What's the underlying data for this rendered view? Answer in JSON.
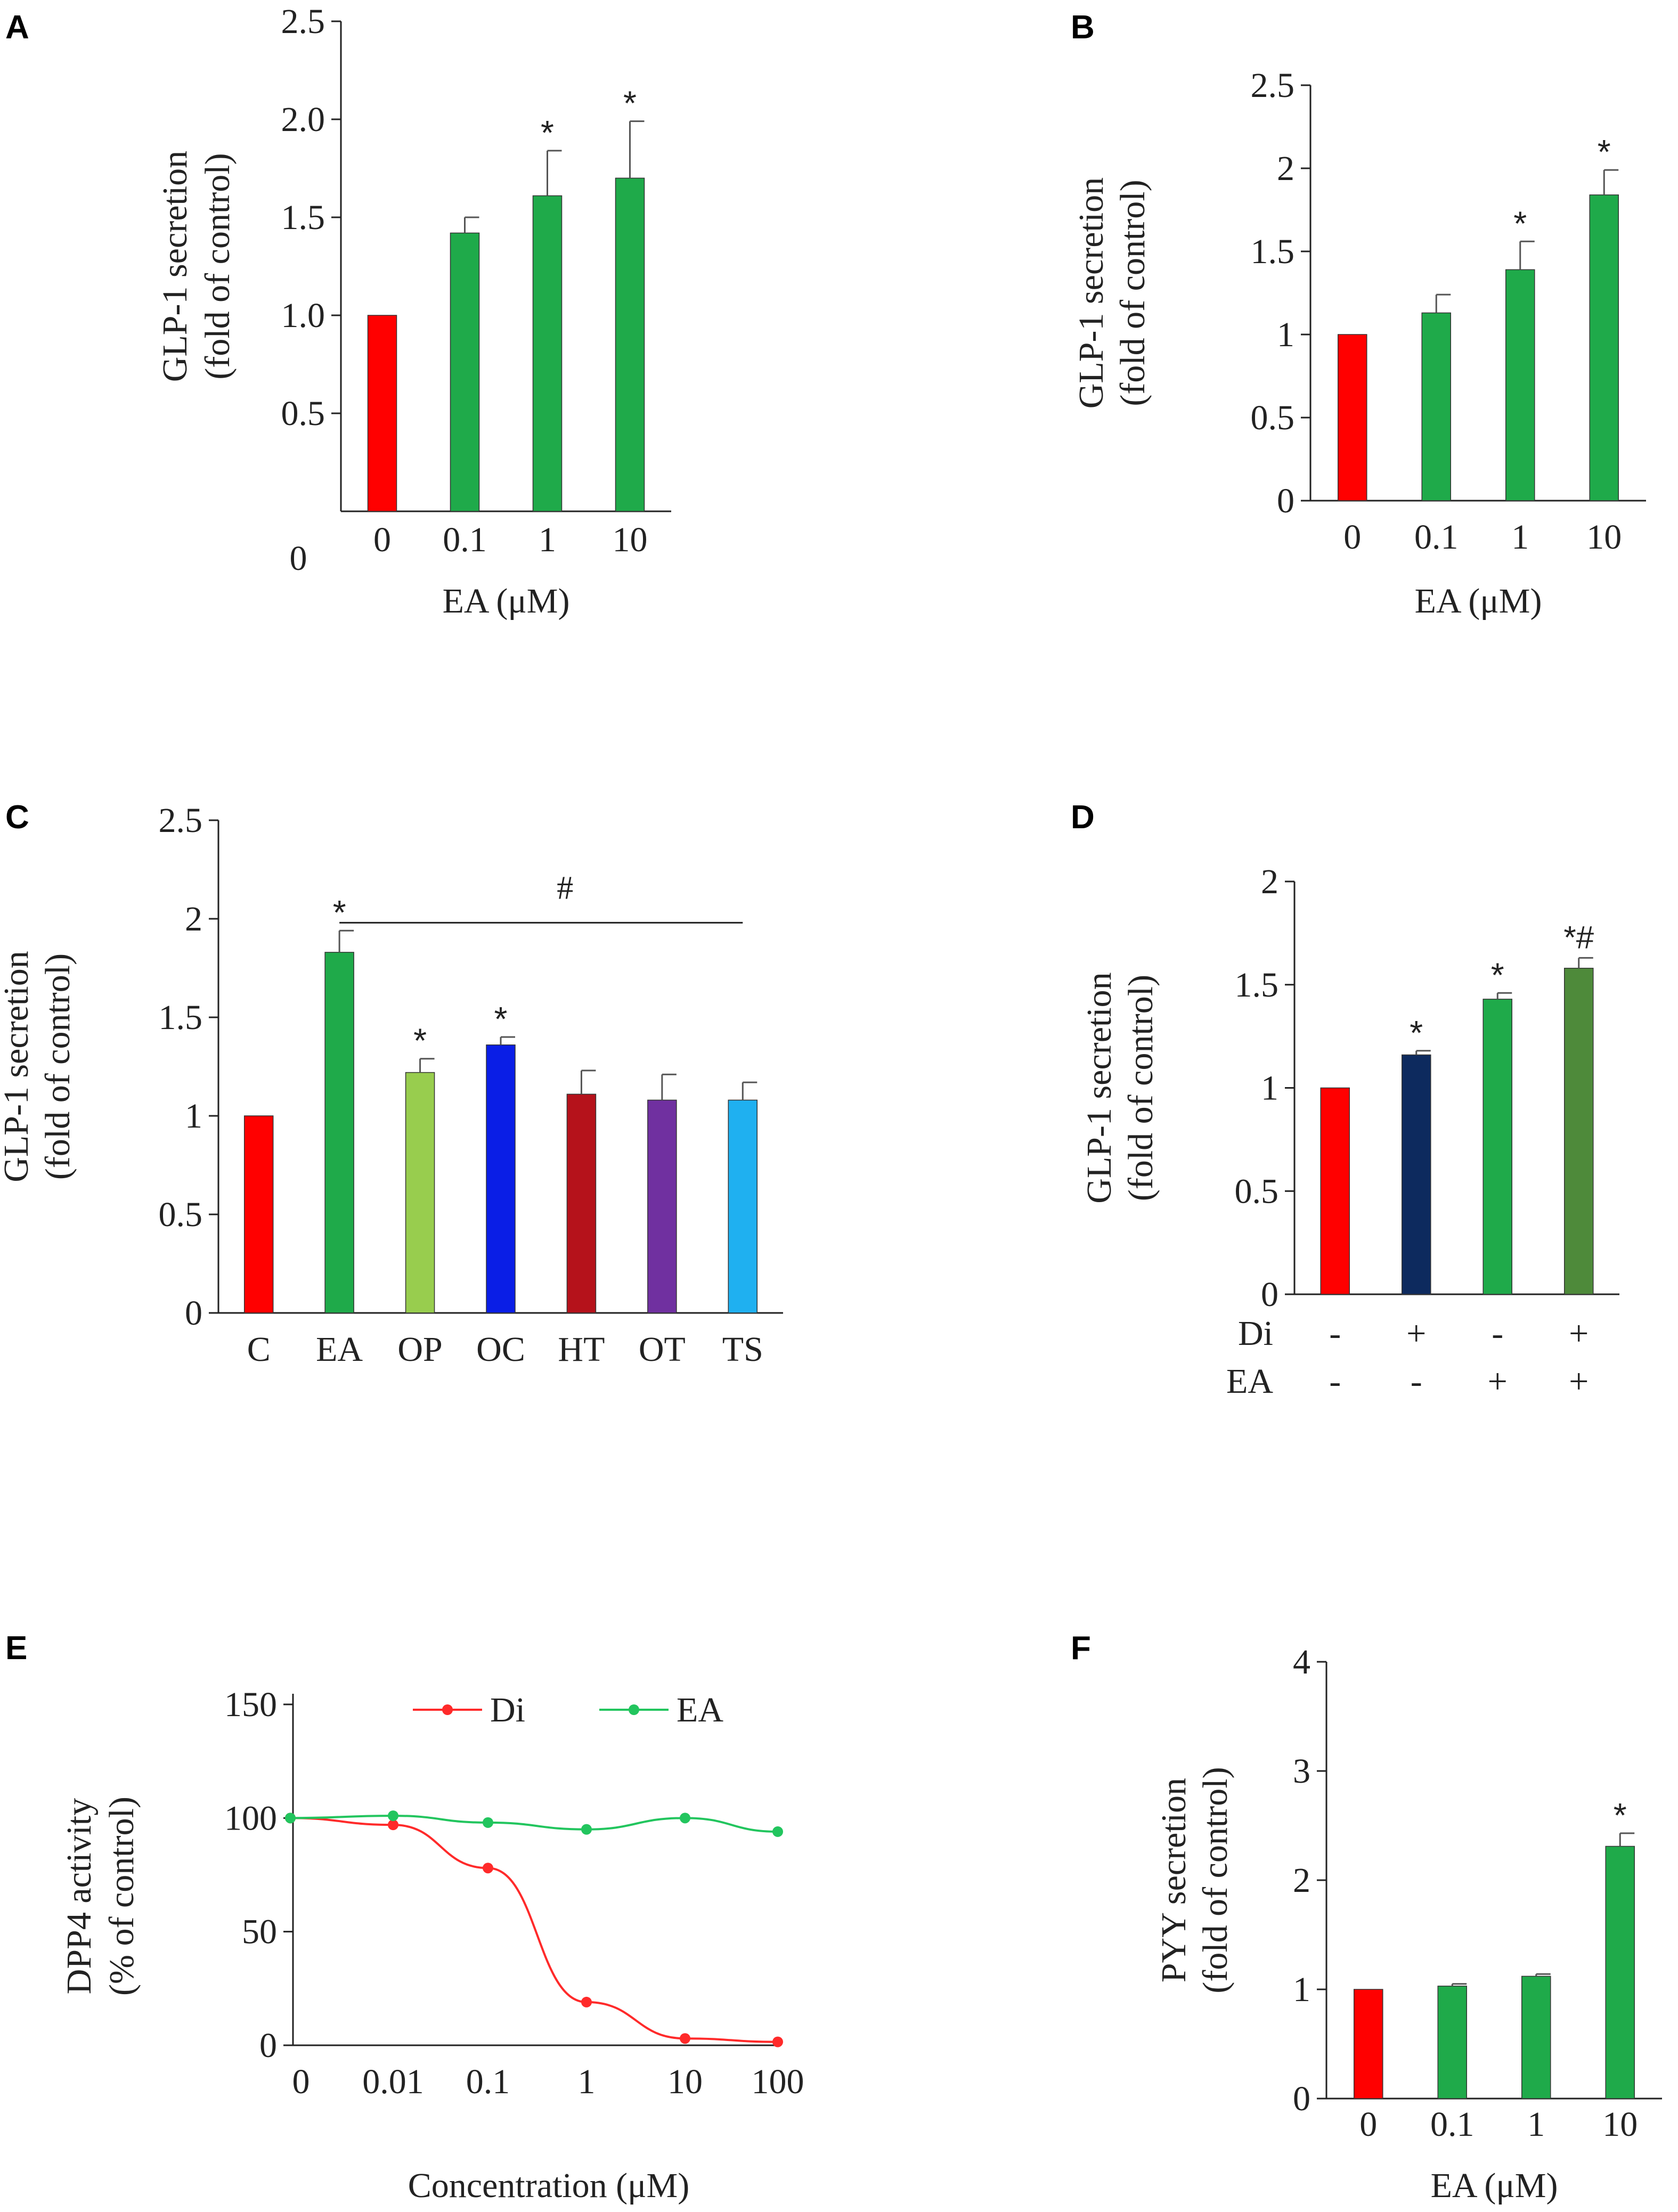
{
  "figure": {
    "colors": {
      "axis": "#222222",
      "control": "#ff0000",
      "ea": "#1faa4a",
      "op": "#98cd4e",
      "oc": "#0a1ee6",
      "ht": "#b5121b",
      "ot": "#7030a0",
      "ts": "#1fb0f0",
      "di": "#0d2a5e",
      "combo": "#4e8a3a",
      "line_di": "#ff2a2a",
      "line_ea": "#22c55e"
    }
  },
  "chart_data": [
    {
      "panel": "A",
      "type": "bar",
      "ylabel": [
        "GLP-1 secretion",
        "(fold  of control)"
      ],
      "xlabel": "EA (μM)",
      "ylim": [
        0,
        2.5
      ],
      "yticks": [
        0,
        0.5,
        1.0,
        1.5,
        2.0,
        2.5
      ],
      "ytick_labels": [
        "0",
        "0.5",
        "1.0",
        "1.5",
        "2.0",
        "2.5"
      ],
      "categories": [
        "0",
        "0.1",
        "1",
        "10"
      ],
      "values": [
        1.0,
        1.42,
        1.61,
        1.7
      ],
      "errors": [
        0,
        0.08,
        0.23,
        0.29
      ],
      "annotations": [
        "",
        "",
        "*",
        "*"
      ],
      "colors": [
        "#ff0000",
        "#1faa4a",
        "#1faa4a",
        "#1faa4a"
      ]
    },
    {
      "panel": "B",
      "type": "bar",
      "ylabel": [
        "GLP-1 secretion",
        "(fold  of control)"
      ],
      "xlabel": "EA (μM)",
      "ylim": [
        0,
        2.5
      ],
      "yticks": [
        0,
        0.5,
        1,
        1.5,
        2,
        2.5
      ],
      "ytick_labels": [
        "0",
        "0.5",
        "1",
        "1.5",
        "2",
        "2.5"
      ],
      "categories": [
        "0",
        "0.1",
        "1",
        "10"
      ],
      "values": [
        1.0,
        1.13,
        1.39,
        1.84
      ],
      "errors": [
        0,
        0.11,
        0.17,
        0.15
      ],
      "annotations": [
        "",
        "",
        "*",
        "*"
      ],
      "colors": [
        "#ff0000",
        "#1faa4a",
        "#1faa4a",
        "#1faa4a"
      ]
    },
    {
      "panel": "C",
      "type": "bar",
      "ylabel": [
        "GLP-1 secretion",
        "(fold  of control)"
      ],
      "xlabel": "",
      "ylim": [
        0,
        2.5
      ],
      "yticks": [
        0,
        0.5,
        1,
        1.5,
        2,
        2.5
      ],
      "ytick_labels": [
        "0",
        "0.5",
        "1",
        "1.5",
        "2",
        "2.5"
      ],
      "categories": [
        "C",
        "EA",
        "OP",
        "OC",
        "HT",
        "OT",
        "TS"
      ],
      "values": [
        1.0,
        1.83,
        1.22,
        1.36,
        1.11,
        1.08,
        1.08
      ],
      "errors": [
        0,
        0.11,
        0.07,
        0.04,
        0.12,
        0.13,
        0.09
      ],
      "annotations": [
        "",
        "*",
        "*",
        "*",
        "",
        "",
        ""
      ],
      "colors": [
        "#ff0000",
        "#1faa4a",
        "#98cd4e",
        "#0a1ee6",
        "#b5121b",
        "#7030a0",
        "#1fb0f0"
      ],
      "bracket": {
        "from_index": 1,
        "to_index": 6,
        "y_value": 1.98,
        "label": "#"
      }
    },
    {
      "panel": "D",
      "type": "bar",
      "ylabel": [
        "GLP-1 secretion",
        "(fold  of control)"
      ],
      "xlabel": "",
      "ylim": [
        0,
        2
      ],
      "yticks": [
        0,
        0.5,
        1,
        1.5,
        2
      ],
      "ytick_labels": [
        "0",
        "0.5",
        "1",
        "1.5",
        "2"
      ],
      "categories": [
        "",
        "",
        "",
        ""
      ],
      "values": [
        1.0,
        1.16,
        1.43,
        1.58
      ],
      "errors": [
        0,
        0.02,
        0.03,
        0.05
      ],
      "annotations": [
        "",
        "*",
        "*",
        "*#"
      ],
      "colors": [
        "#ff0000",
        "#0d2a5e",
        "#1faa4a",
        "#4e8a3a"
      ],
      "conditions": [
        {
          "label": "Di",
          "values": [
            "-",
            "+",
            "-",
            "+"
          ]
        },
        {
          "label": "EA",
          "values": [
            "-",
            "-",
            "+",
            "+"
          ]
        }
      ]
    },
    {
      "panel": "E",
      "type": "line",
      "ylabel": [
        "DPP4 activity",
        "(% of control)"
      ],
      "xlabel": "Concentration  (μM)",
      "ylim": [
        0,
        150
      ],
      "yticks": [
        0,
        50,
        100,
        150
      ],
      "ytick_labels": [
        "0",
        "50",
        "100",
        "150"
      ],
      "x_tick_labels": [
        "0",
        "0.01",
        "0.1",
        "1",
        "10",
        "100"
      ],
      "legend_position": "top",
      "series": [
        {
          "name": "Di",
          "color": "#ff2a2a",
          "x_index": [
            0,
            1,
            2,
            3,
            4,
            5
          ],
          "values": [
            100,
            97,
            78,
            19,
            3,
            1.5
          ]
        },
        {
          "name": "EA",
          "color": "#22c55e",
          "x_index": [
            0,
            1,
            2,
            3,
            4,
            5
          ],
          "values": [
            100,
            101,
            98,
            95,
            100,
            94
          ]
        }
      ]
    },
    {
      "panel": "F",
      "type": "bar",
      "ylabel": [
        "PYY secretion",
        "(fold  of control)"
      ],
      "xlabel": "EA (μM)",
      "ylim": [
        0,
        4
      ],
      "yticks": [
        0,
        1,
        2,
        3,
        4
      ],
      "ytick_labels": [
        "0",
        "1",
        "2",
        "3",
        "4"
      ],
      "categories": [
        "0",
        "0.1",
        "1",
        "10"
      ],
      "values": [
        1.0,
        1.03,
        1.12,
        2.31
      ],
      "errors": [
        0,
        0.02,
        0.02,
        0.12
      ],
      "annotations": [
        "",
        "",
        "",
        "*"
      ],
      "colors": [
        "#ff0000",
        "#1faa4a",
        "#1faa4a",
        "#1faa4a"
      ]
    }
  ]
}
